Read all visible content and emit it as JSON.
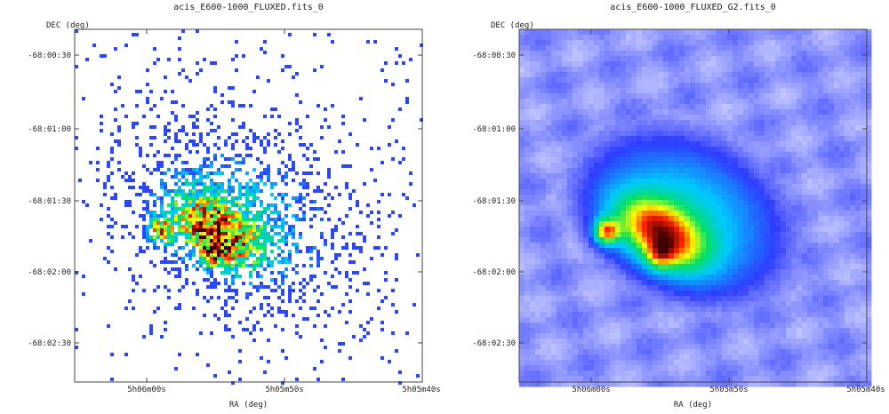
{
  "chart_data": [
    {
      "type": "heatmap",
      "title": "acis_E600-1000_FLUXED.fits_0",
      "xlabel": "RA (deg)",
      "ylabel": "DEC (deg)",
      "x_ticks": [
        "5h06m00s",
        "5h05m50s",
        "5h05m40s"
      ],
      "y_ticks": [
        "-68:00:30",
        "-68:01:00",
        "-68:01:30",
        "-68:02:00",
        "-68:02:30"
      ],
      "colormap": [
        "#ffffff",
        "#2e3cff",
        "#00c8ff",
        "#00e060",
        "#ffff00",
        "#ff2000",
        "#400000"
      ],
      "smoothed": false
    },
    {
      "type": "heatmap",
      "title": "acis_E600-1000_FLUXED_G2.fits_0",
      "xlabel": "RA (deg)",
      "ylabel": "DEC (deg)",
      "x_ticks": [
        "5h06m00s",
        "5h05m50s",
        "5h05m40s"
      ],
      "y_ticks": [
        "-68:00:30",
        "-68:01:00",
        "-68:01:30",
        "-68:02:00",
        "-68:02:30"
      ],
      "colormap": [
        "#ffffff",
        "#2e3cff",
        "#00c8ff",
        "#00e060",
        "#ffff00",
        "#ff2000",
        "#400000"
      ],
      "smoothed": true
    }
  ]
}
